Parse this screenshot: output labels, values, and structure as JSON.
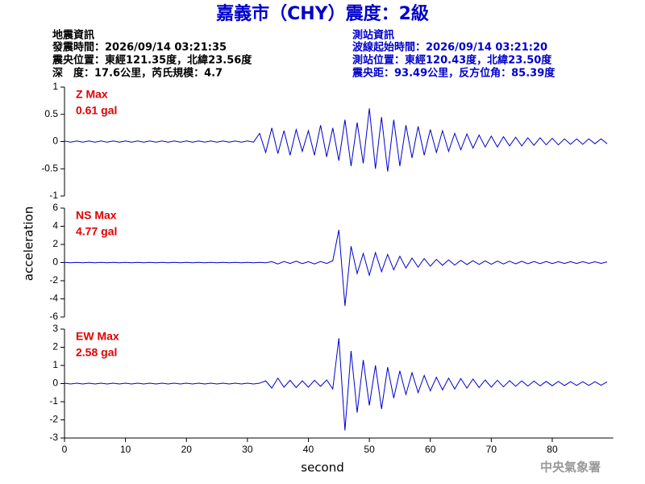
{
  "title": "嘉義市（CHY）震度：2級",
  "earthquake_info": [
    "地震資訊",
    "發震時間：2026/09/14 03:21:35",
    "震央位置：東經121.35度，北緯23.56度",
    "深　度：17.6公里，芮氏規模：4.7"
  ],
  "station_info": [
    "測站資訊",
    "波線起始時間：2026/09/14 03:21:20",
    "測站位置：東經120.43度，北緯23.50度",
    "震央距：93.49公里，反方位角：85.39度"
  ],
  "y_label": "acceleration",
  "x_label": "second",
  "watermark": "中央氣象署",
  "chart_data": [
    {
      "type": "line",
      "label": "Z Max",
      "max_label": "0.61 gal",
      "xlim": [
        0,
        90
      ],
      "ylim": [
        -1,
        1
      ],
      "yticks": [
        -1,
        -0.5,
        0,
        0.5,
        1
      ],
      "x": [
        0,
        1,
        2,
        3,
        4,
        5,
        6,
        7,
        8,
        9,
        10,
        11,
        12,
        13,
        14,
        15,
        16,
        17,
        18,
        19,
        20,
        21,
        22,
        23,
        24,
        25,
        26,
        27,
        28,
        29,
        30,
        31,
        32,
        33,
        34,
        35,
        36,
        37,
        38,
        39,
        40,
        41,
        42,
        43,
        44,
        45,
        46,
        47,
        48,
        49,
        50,
        51,
        52,
        53,
        54,
        55,
        56,
        57,
        58,
        59,
        60,
        61,
        62,
        63,
        64,
        65,
        66,
        67,
        68,
        69,
        70,
        71,
        72,
        73,
        74,
        75,
        76,
        77,
        78,
        79,
        80,
        81,
        82,
        83,
        84,
        85,
        86,
        87,
        88,
        89
      ],
      "series": [
        {
          "color": "#0000cc",
          "values": [
            0.01,
            -0.01,
            0.01,
            -0.01,
            0.01,
            -0.01,
            0.01,
            -0.01,
            0.01,
            -0.01,
            0.01,
            -0.01,
            0.01,
            -0.01,
            0.01,
            -0.01,
            0.01,
            -0.01,
            0.01,
            -0.01,
            0.01,
            -0.01,
            0.01,
            -0.01,
            0.01,
            -0.01,
            0.01,
            -0.01,
            0.01,
            -0.01,
            0.01,
            -0.01,
            0.15,
            -0.2,
            0.25,
            -0.22,
            0.2,
            -0.25,
            0.22,
            -0.18,
            0.2,
            -0.25,
            0.3,
            -0.28,
            0.25,
            -0.35,
            0.4,
            -0.45,
            0.35,
            -0.4,
            0.61,
            -0.5,
            0.45,
            -0.55,
            0.4,
            -0.45,
            0.3,
            -0.3,
            0.28,
            -0.25,
            0.22,
            -0.2,
            0.2,
            -0.18,
            0.15,
            -0.15,
            0.14,
            -0.12,
            0.12,
            -0.1,
            0.1,
            -0.1,
            0.09,
            -0.08,
            0.08,
            -0.08,
            0.07,
            -0.07,
            0.07,
            -0.06,
            0.06,
            -0.06,
            0.05,
            -0.05,
            0.05,
            -0.05,
            0.05,
            -0.04,
            0.05,
            -0.04
          ]
        }
      ]
    },
    {
      "type": "line",
      "label": "NS Max",
      "max_label": "4.77 gal",
      "xlim": [
        0,
        90
      ],
      "ylim": [
        -6,
        6
      ],
      "yticks": [
        -6,
        -4,
        -2,
        0,
        2,
        4,
        6
      ],
      "x": [
        0,
        1,
        2,
        3,
        4,
        5,
        6,
        7,
        8,
        9,
        10,
        11,
        12,
        13,
        14,
        15,
        16,
        17,
        18,
        19,
        20,
        21,
        22,
        23,
        24,
        25,
        26,
        27,
        28,
        29,
        30,
        31,
        32,
        33,
        34,
        35,
        36,
        37,
        38,
        39,
        40,
        41,
        42,
        43,
        44,
        45,
        46,
        47,
        48,
        49,
        50,
        51,
        52,
        53,
        54,
        55,
        56,
        57,
        58,
        59,
        60,
        61,
        62,
        63,
        64,
        65,
        66,
        67,
        68,
        69,
        70,
        71,
        72,
        73,
        74,
        75,
        76,
        77,
        78,
        79,
        80,
        81,
        82,
        83,
        84,
        85,
        86,
        87,
        88,
        89
      ],
      "series": [
        {
          "color": "#0000cc",
          "values": [
            0.02,
            -0.02,
            0.02,
            -0.02,
            0.02,
            -0.02,
            0.02,
            -0.02,
            0.02,
            -0.02,
            0.02,
            -0.02,
            0.02,
            -0.02,
            0.02,
            -0.02,
            0.02,
            -0.02,
            0.02,
            -0.02,
            0.02,
            -0.02,
            0.02,
            -0.02,
            0.02,
            -0.02,
            0.02,
            -0.02,
            0.02,
            -0.02,
            0.02,
            -0.02,
            0.02,
            -0.02,
            0.1,
            -0.15,
            0.12,
            -0.1,
            0.15,
            -0.12,
            0.1,
            -0.15,
            0.12,
            -0.1,
            0.2,
            3.6,
            -4.77,
            1.8,
            -1.2,
            1.0,
            -1.4,
            1.1,
            -1.0,
            0.9,
            -0.8,
            0.7,
            -0.6,
            0.5,
            -0.5,
            0.45,
            -0.4,
            0.35,
            -0.3,
            0.3,
            -0.28,
            0.25,
            -0.22,
            0.2,
            -0.2,
            0.18,
            -0.18,
            0.16,
            -0.15,
            0.15,
            -0.14,
            0.14,
            -0.13,
            0.12,
            -0.12,
            0.12,
            -0.11,
            0.1,
            -0.1,
            0.1,
            -0.1,
            0.1,
            -0.09,
            0.09,
            -0.09,
            0.08
          ]
        }
      ]
    },
    {
      "type": "line",
      "label": "EW Max",
      "max_label": "2.58 gal",
      "xlim": [
        0,
        90
      ],
      "xticks": [
        0,
        10,
        20,
        30,
        40,
        50,
        60,
        70,
        80
      ],
      "ylim": [
        -3,
        3
      ],
      "yticks": [
        -3,
        -2,
        -1,
        0,
        1,
        2,
        3
      ],
      "x": [
        0,
        1,
        2,
        3,
        4,
        5,
        6,
        7,
        8,
        9,
        10,
        11,
        12,
        13,
        14,
        15,
        16,
        17,
        18,
        19,
        20,
        21,
        22,
        23,
        24,
        25,
        26,
        27,
        28,
        29,
        30,
        31,
        32,
        33,
        34,
        35,
        36,
        37,
        38,
        39,
        40,
        41,
        42,
        43,
        44,
        45,
        46,
        47,
        48,
        49,
        50,
        51,
        52,
        53,
        54,
        55,
        56,
        57,
        58,
        59,
        60,
        61,
        62,
        63,
        64,
        65,
        66,
        67,
        68,
        69,
        70,
        71,
        72,
        73,
        74,
        75,
        76,
        77,
        78,
        79,
        80,
        81,
        82,
        83,
        84,
        85,
        86,
        87,
        88,
        89
      ],
      "series": [
        {
          "color": "#0000cc",
          "values": [
            0.02,
            -0.02,
            0.02,
            -0.02,
            0.02,
            -0.02,
            0.02,
            -0.02,
            0.02,
            -0.02,
            0.02,
            -0.02,
            0.02,
            -0.02,
            0.02,
            -0.02,
            0.02,
            -0.02,
            0.02,
            -0.02,
            0.02,
            -0.02,
            0.02,
            -0.02,
            0.02,
            -0.02,
            0.02,
            -0.02,
            0.02,
            -0.02,
            0.02,
            -0.02,
            0.02,
            0.15,
            -0.25,
            0.3,
            -0.2,
            0.18,
            -0.22,
            0.15,
            -0.2,
            0.18,
            -0.15,
            0.2,
            -0.3,
            2.5,
            -2.58,
            1.8,
            -1.6,
            1.3,
            -1.2,
            1.0,
            -1.4,
            0.9,
            -0.8,
            0.7,
            -0.6,
            0.6,
            -0.5,
            0.45,
            -0.4,
            0.35,
            -0.35,
            0.3,
            -0.3,
            0.28,
            -0.25,
            0.25,
            -0.22,
            0.2,
            -0.2,
            0.18,
            -0.18,
            0.16,
            -0.15,
            0.15,
            -0.14,
            0.14,
            -0.13,
            0.12,
            -0.12,
            0.12,
            -0.11,
            0.1,
            -0.1,
            0.1,
            -0.1,
            0.1,
            -0.09,
            0.09
          ]
        }
      ]
    }
  ]
}
